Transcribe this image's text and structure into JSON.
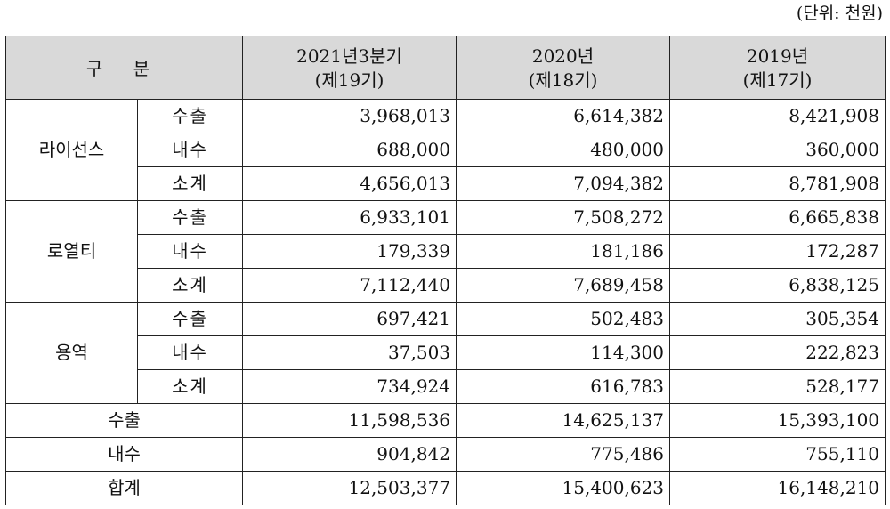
{
  "unit_note": "(단위: 천원)",
  "header": {
    "category": "구 분",
    "periods": [
      {
        "line1": "2021년3분기",
        "line2": "(제19기)"
      },
      {
        "line1": "2020년",
        "line2": "(제18기)"
      },
      {
        "line1": "2019년",
        "line2": "(제17기)"
      }
    ]
  },
  "groups": [
    {
      "name": "라이선스",
      "rows": [
        {
          "label": "수출",
          "values": [
            "3,968,013",
            "6,614,382",
            "8,421,908"
          ]
        },
        {
          "label": "내수",
          "values": [
            "688,000",
            "480,000",
            "360,000"
          ]
        },
        {
          "label": "소계",
          "values": [
            "4,656,013",
            "7,094,382",
            "8,781,908"
          ]
        }
      ]
    },
    {
      "name": "로열티",
      "rows": [
        {
          "label": "수출",
          "values": [
            "6,933,101",
            "7,508,272",
            "6,665,838"
          ]
        },
        {
          "label": "내수",
          "values": [
            "179,339",
            "181,186",
            "172,287"
          ]
        },
        {
          "label": "소계",
          "values": [
            "7,112,440",
            "7,689,458",
            "6,838,125"
          ]
        }
      ]
    },
    {
      "name": "용역",
      "rows": [
        {
          "label": "수출",
          "values": [
            "697,421",
            "502,483",
            "305,354"
          ]
        },
        {
          "label": "내수",
          "values": [
            "37,503",
            "114,300",
            "222,823"
          ]
        },
        {
          "label": "소계",
          "values": [
            "734,924",
            "616,783",
            "528,177"
          ]
        }
      ]
    }
  ],
  "totals": [
    {
      "label": "수출",
      "values": [
        "11,598,536",
        "14,625,137",
        "15,393,100"
      ]
    },
    {
      "label": "내수",
      "values": [
        "904,842",
        "775,486",
        "755,110"
      ]
    },
    {
      "label": "합계",
      "values": [
        "12,503,377",
        "15,400,623",
        "16,148,210"
      ]
    }
  ]
}
